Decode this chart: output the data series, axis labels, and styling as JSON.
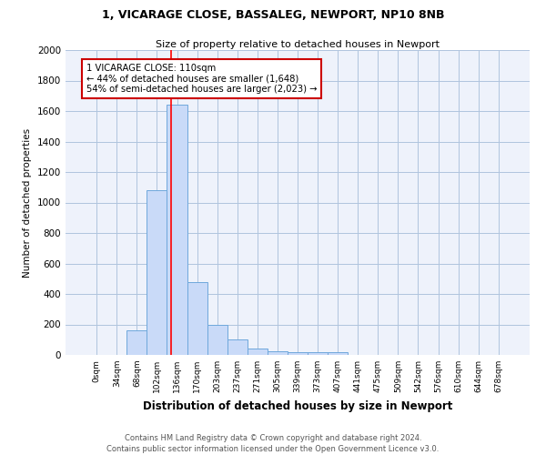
{
  "title_line1": "1, VICARAGE CLOSE, BASSALEG, NEWPORT, NP10 8NB",
  "title_line2": "Size of property relative to detached houses in Newport",
  "xlabel": "Distribution of detached houses by size in Newport",
  "ylabel": "Number of detached properties",
  "bar_labels": [
    "0sqm",
    "34sqm",
    "68sqm",
    "102sqm",
    "136sqm",
    "170sqm",
    "203sqm",
    "237sqm",
    "271sqm",
    "305sqm",
    "339sqm",
    "373sqm",
    "407sqm",
    "441sqm",
    "475sqm",
    "509sqm",
    "542sqm",
    "576sqm",
    "610sqm",
    "644sqm",
    "678sqm"
  ],
  "bar_values": [
    0,
    0,
    160,
    1080,
    1640,
    480,
    200,
    100,
    40,
    25,
    20,
    15,
    20,
    0,
    0,
    0,
    0,
    0,
    0,
    0,
    0
  ],
  "bar_color": "#c9daf8",
  "bar_edge_color": "#6fa8dc",
  "red_line_x": 3.72,
  "annotation_text": "1 VICARAGE CLOSE: 110sqm\n← 44% of detached houses are smaller (1,648)\n54% of semi-detached houses are larger (2,023) →",
  "annotation_box_color": "#ffffff",
  "annotation_border_color": "#cc0000",
  "ylim": [
    0,
    2000
  ],
  "yticks": [
    0,
    200,
    400,
    600,
    800,
    1000,
    1200,
    1400,
    1600,
    1800,
    2000
  ],
  "grid_color": "#b0c4de",
  "background_color": "#eef2fb",
  "footer_line1": "Contains HM Land Registry data © Crown copyright and database right 2024.",
  "footer_line2": "Contains public sector information licensed under the Open Government Licence v3.0."
}
